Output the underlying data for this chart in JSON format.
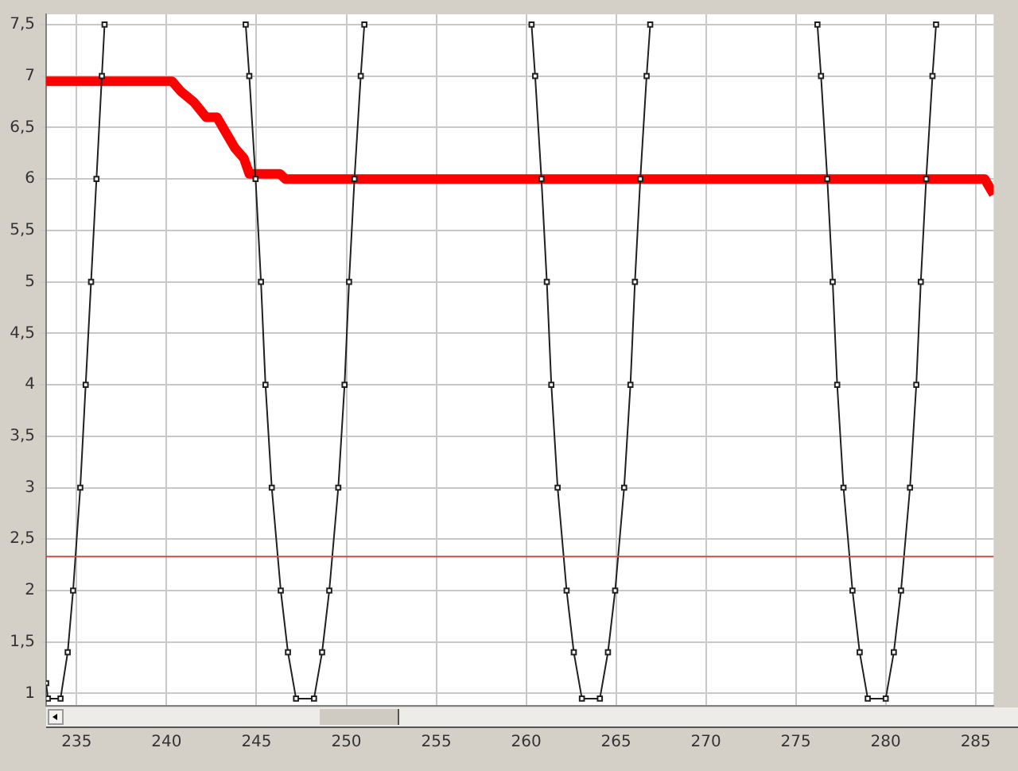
{
  "chart_data": {
    "type": "line",
    "xlim": [
      233.3,
      286
    ],
    "xticks": [
      235,
      240,
      245,
      250,
      255,
      260,
      265,
      270,
      275,
      280,
      285
    ],
    "ylim": [
      0.88,
      7.6
    ],
    "yticks": [
      1,
      {
        "value": 1.5,
        "label": "1,5"
      },
      2,
      {
        "value": 2.5,
        "label": "2,5"
      },
      3,
      {
        "value": 3.5,
        "label": "3,5"
      },
      4,
      {
        "value": 4.5,
        "label": "4,5"
      },
      5,
      {
        "value": 5.5,
        "label": "5,5"
      },
      6,
      {
        "value": 6.5,
        "label": "6,5"
      },
      7,
      {
        "value": 7.5,
        "label": "7,5"
      }
    ],
    "grid": true,
    "series": [
      {
        "color": "#202020",
        "marker": "square",
        "x": [
          233.3,
          233.4,
          234.1,
          234.5,
          234.8,
          235.2,
          235.5,
          235.8,
          236.1,
          236.4,
          236.55,
          240,
          244.4,
          244.6,
          244.95,
          245.25,
          245.5,
          245.85,
          246.35,
          246.75,
          247.2,
          248.2,
          248.65,
          249.05,
          249.55,
          249.9,
          250.15,
          250.45,
          250.8,
          251.0,
          255,
          260.3,
          260.5,
          260.85,
          261.15,
          261.4,
          261.75,
          262.25,
          262.65,
          263.1,
          264.1,
          264.55,
          264.95,
          265.45,
          265.8,
          266.05,
          266.35,
          266.7,
          266.9,
          270,
          276.2,
          276.4,
          276.75,
          277.05,
          277.3,
          277.65,
          278.15,
          278.55,
          279.0,
          280.0,
          280.45,
          280.85,
          281.35,
          281.7,
          281.95,
          282.25,
          282.6,
          282.8
        ],
        "values": [
          1.1,
          0.95,
          0.95,
          1.4,
          2.0,
          3.0,
          4.0,
          5.0,
          6.0,
          7.0,
          7.5,
          null,
          7.5,
          7.0,
          6.0,
          5.0,
          4.0,
          3.0,
          2.0,
          1.4,
          0.95,
          0.95,
          1.4,
          2.0,
          3.0,
          4.0,
          5.0,
          6.0,
          7.0,
          7.5,
          null,
          7.5,
          7.0,
          6.0,
          5.0,
          4.0,
          3.0,
          2.0,
          1.4,
          0.95,
          0.95,
          1.4,
          2.0,
          3.0,
          4.0,
          5.0,
          6.0,
          7.0,
          7.5,
          null,
          7.5,
          7.0,
          6.0,
          5.0,
          4.0,
          3.0,
          2.0,
          1.4,
          0.95,
          0.95,
          1.4,
          2.0,
          3.0,
          4.0,
          5.0,
          6.0,
          7.0,
          7.5
        ]
      },
      {
        "color": "#ff0000",
        "marker": "none",
        "x": [
          233.3,
          240.3,
          240.8,
          241.5,
          242.2,
          242.8,
          243.3,
          243.8,
          244.3,
          244.6,
          246.3,
          246.6,
          285.5,
          286
        ],
        "values": [
          6.95,
          6.95,
          6.85,
          6.75,
          6.6,
          6.6,
          6.45,
          6.3,
          6.2,
          6.05,
          6.05,
          6.0,
          6.0,
          5.85
        ]
      }
    ],
    "ref_lines": [
      {
        "axis": "y",
        "value": 2.33,
        "color": "#c0504d"
      }
    ]
  }
}
